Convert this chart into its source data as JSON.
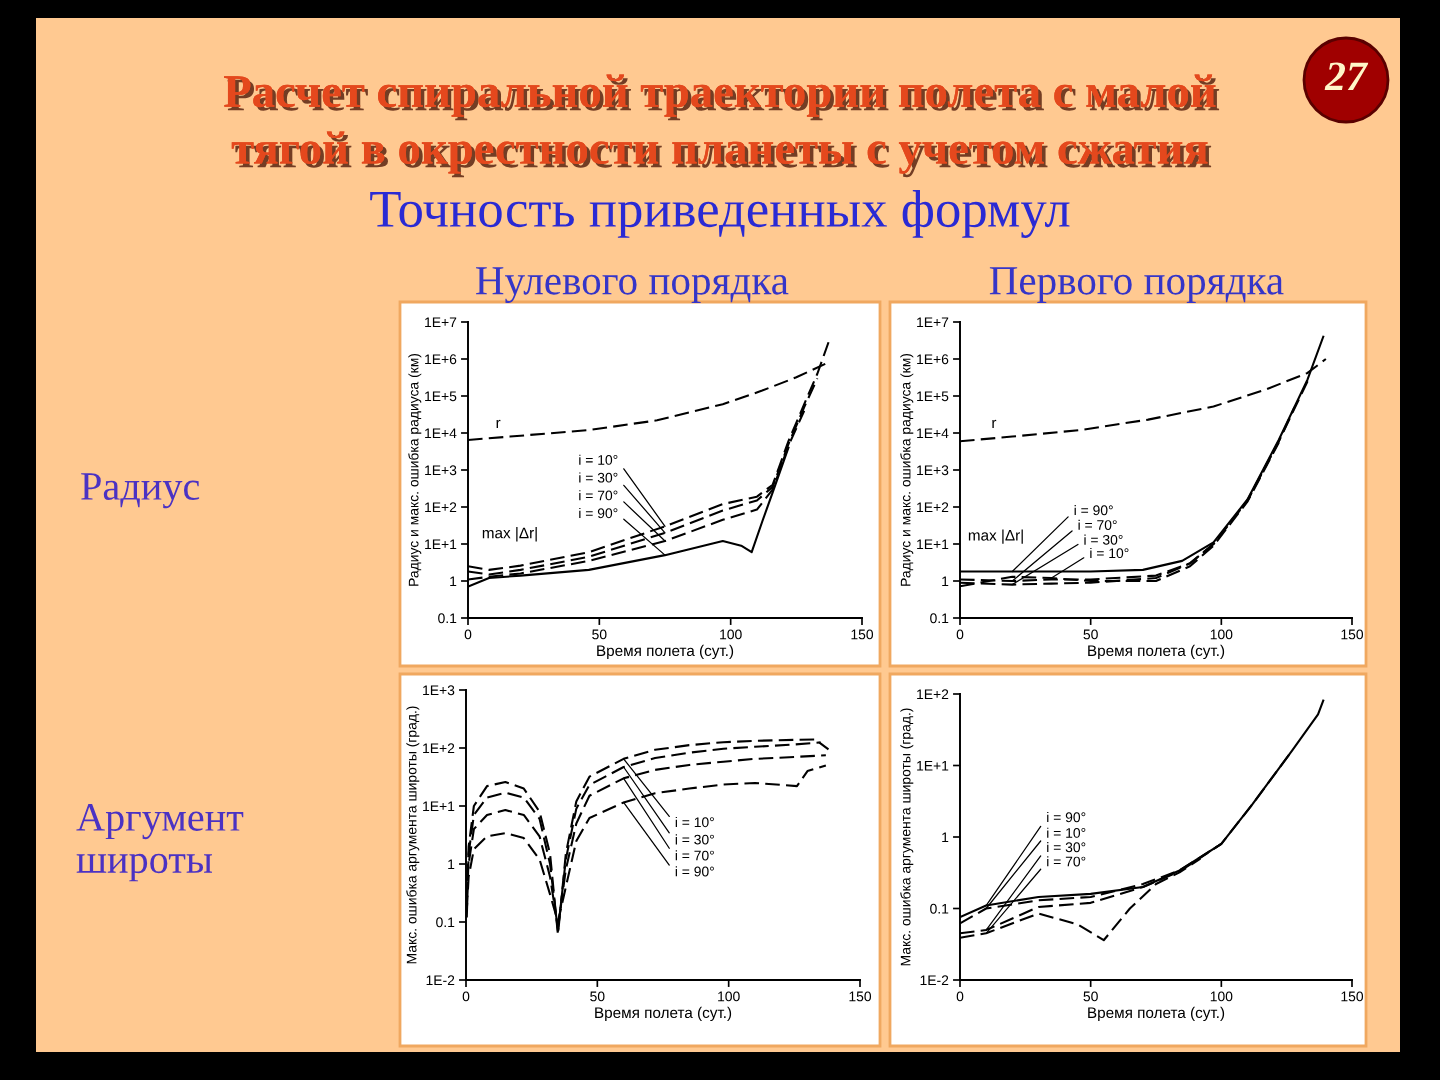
{
  "chart_data": [
    {
      "type": "line",
      "title": "Нулевого порядка",
      "xlabel": "Время полета (сут.)",
      "ylabel": "Радиус и макс. ошибка радиуса (км)",
      "log": "y",
      "xlim": [
        0,
        150
      ],
      "xticks": [
        0,
        50,
        100,
        150
      ],
      "ylim": [
        0.1,
        10000000
      ],
      "yticks": [
        0.1,
        1,
        {
          "value": 10,
          "label": "1E+1"
        },
        {
          "value": 100,
          "label": "1E+2"
        },
        {
          "value": 1000,
          "label": "1E+3"
        },
        {
          "value": 10000,
          "label": "1E+4"
        },
        {
          "value": 100000,
          "label": "1E+5"
        },
        {
          "value": 1000000,
          "label": "1E+6"
        },
        {
          "value": 10000000,
          "label": "1E+7"
        }
      ],
      "series": [
        {
          "name": "r",
          "color": "#000000",
          "line_style": "dashed",
          "x": [
            0,
            16,
            46,
            72,
            97,
            112,
            125,
            136
          ],
          "values": [
            6500,
            8000,
            12000,
            22000,
            60000,
            140000,
            320000,
            740000
          ]
        },
        {
          "color": "#000000",
          "line_style": "dashed",
          "x": [
            0,
            8,
            20,
            46,
            75,
            97,
            110,
            116,
            122,
            128,
            133,
            138
          ],
          "values": [
            2.5,
            2.0,
            2.6,
            6,
            30,
            120,
            190,
            400,
            6000,
            60000,
            400000,
            4000000
          ]
        },
        {
          "color": "#000000",
          "line_style": "dashed",
          "x": [
            0,
            8,
            20,
            46,
            75,
            97,
            110,
            116,
            122,
            128,
            133
          ],
          "values": [
            1.8,
            1.5,
            2.0,
            4.5,
            20,
            80,
            150,
            350,
            5000,
            50000,
            300000
          ]
        },
        {
          "color": "#000000",
          "line_style": "dashed",
          "x": [
            0,
            8,
            20,
            46,
            75,
            97,
            110,
            116,
            122,
            128
          ],
          "values": [
            1.1,
            1.3,
            1.6,
            3.5,
            12,
            45,
            85,
            300,
            4500,
            40000
          ]
        },
        {
          "color": "#000000",
          "line_style": "solid",
          "x": [
            0,
            8,
            20,
            46,
            75,
            97,
            104,
            108,
            112,
            116,
            122
          ],
          "values": [
            0.7,
            1.2,
            1.4,
            2.0,
            5,
            12,
            9,
            6,
            40,
            250,
            4000
          ]
        }
      ],
      "annotations": [
        "Расчет спиральной траектории полета с малой\nтягой в окрестности планеты с учетом сжатия",
        "Точность приведенных формул",
        "27",
        "Радиус",
        "max |Δr|",
        {
          "text": "i = 10°",
          "x": 75,
          "y": 30
        },
        {
          "text": "i = 30°",
          "x": 75,
          "y": 20
        },
        {
          "text": "i = 70°",
          "x": 75,
          "y": 12
        },
        {
          "text": "i = 90°",
          "x": 75,
          "y": 5
        }
      ]
    },
    {
      "type": "line",
      "title": "Первого порядка",
      "xlabel": "Время полета (сут.)",
      "ylabel": "Радиус и макс. ошибка радиуса (км)",
      "log": "y",
      "xlim": [
        0,
        150
      ],
      "xticks": [
        0,
        50,
        100,
        150
      ],
      "ylim": [
        0.1,
        10000000
      ],
      "yticks": [
        0.1,
        1,
        {
          "value": 10,
          "label": "1E+1"
        },
        {
          "value": 100,
          "label": "1E+2"
        },
        {
          "value": 1000,
          "label": "1E+3"
        },
        {
          "value": 10000,
          "label": "1E+4"
        },
        {
          "value": 100000,
          "label": "1E+5"
        },
        {
          "value": 1000000,
          "label": "1E+6"
        },
        {
          "value": 10000000,
          "label": "1E+7"
        }
      ],
      "series": [
        {
          "name": "r",
          "color": "#000000",
          "line_style": "dashed",
          "x": [
            0,
            20,
            46,
            72,
            97,
            117,
            133,
            140
          ],
          "values": [
            6000,
            8000,
            12000,
            23000,
            52000,
            150000,
            420000,
            1000000
          ]
        },
        {
          "color": "#000000",
          "line_style": "solid",
          "x": [
            0,
            20,
            50,
            70,
            85,
            97,
            110,
            122,
            133,
            139
          ],
          "values": [
            1.8,
            1.8,
            1.8,
            2.0,
            3.5,
            11,
            160,
            6600,
            280000,
            4000000
          ]
        },
        {
          "color": "#000000",
          "line_style": "dashed",
          "x": [
            0,
            20,
            35,
            50,
            75,
            88,
            97,
            110,
            122,
            133
          ],
          "values": [
            1.1,
            1.0,
            1.1,
            1.1,
            1.4,
            3.0,
            10,
            150,
            6000,
            250000
          ]
        },
        {
          "color": "#000000",
          "line_style": "dashed",
          "x": [
            0,
            20,
            35,
            50,
            75,
            88,
            97,
            110,
            122,
            128
          ],
          "values": [
            0.9,
            0.8,
            0.85,
            0.9,
            1.2,
            3.0,
            10,
            150,
            6000,
            50000
          ]
        },
        {
          "color": "#000000",
          "line_style": "dashed",
          "x": [
            0,
            20,
            35,
            50,
            75,
            88,
            97,
            110,
            122
          ],
          "values": [
            0.72,
            1.3,
            1.2,
            1.0,
            1.0,
            2.5,
            9,
            140,
            5500
          ]
        }
      ],
      "annotations": [
        "max |Δr|",
        {
          "text": "i = 90°",
          "x": 20,
          "y": 1.8
        },
        {
          "text": "i = 70°",
          "x": 20,
          "y": 1.0
        },
        {
          "text": "i = 30°",
          "x": 20,
          "y": 0.8
        },
        {
          "text": "i = 10°",
          "x": 35,
          "y": 1.2
        }
      ]
    },
    {
      "type": "line",
      "xlabel": "Время полета (сут.)",
      "ylabel": "Макс. ошибка аргумента широты (град.)",
      "log": "y",
      "xlim": [
        0,
        150
      ],
      "xticks": [
        0,
        50,
        100,
        150
      ],
      "ylim": [
        0.01,
        1000
      ],
      "yticks": [
        {
          "value": 0.01,
          "label": "1E-2"
        },
        0.1,
        1,
        {
          "value": 10,
          "label": "1E+1"
        },
        {
          "value": 100,
          "label": "1E+2"
        },
        {
          "value": 1000,
          "label": "1E+3"
        }
      ],
      "series": [
        {
          "color": "#000000",
          "line_style": "dashed",
          "x": [
            0.3,
            1,
            3,
            8,
            15,
            22,
            28,
            32,
            35,
            38,
            42,
            47,
            60,
            72,
            85,
            98,
            110,
            125,
            133,
            138
          ],
          "values": [
            0.25,
            2,
            10,
            22,
            26,
            20,
            8,
            1.5,
            0.06,
            1.5,
            12,
            32,
            65,
            93,
            112,
            126,
            133,
            138,
            140,
            95
          ]
        },
        {
          "color": "#000000",
          "line_style": "dashed",
          "x": [
            0.3,
            1,
            3,
            8,
            15,
            22,
            28,
            32,
            35,
            38,
            42,
            47,
            60,
            72,
            85,
            98,
            110,
            125,
            135
          ],
          "values": [
            0.12,
            1.5,
            7,
            14,
            17,
            14,
            6,
            1,
            0.07,
            1.2,
            9,
            23,
            47,
            67,
            83,
            97,
            105,
            115,
            125
          ]
        },
        {
          "color": "#000000",
          "line_style": "dashed",
          "x": [
            0.3,
            1,
            3,
            8,
            15,
            22,
            28,
            32,
            35,
            38,
            42,
            47,
            60,
            72,
            85,
            98,
            110,
            125,
            137
          ],
          "values": [
            0.5,
            1,
            4,
            7,
            8.5,
            7,
            3,
            0.6,
            0.08,
            0.8,
            5,
            15,
            30,
            42,
            51,
            58,
            65,
            70,
            75
          ]
        },
        {
          "color": "#000000",
          "line_style": "dashed",
          "x": [
            0.3,
            1,
            3,
            8,
            15,
            22,
            28,
            32,
            35,
            38,
            42,
            47,
            60,
            72,
            85,
            98,
            110,
            126,
            130,
            137
          ],
          "values": [
            0.16,
            0.6,
            1.8,
            3,
            3.4,
            2.8,
            1.2,
            0.3,
            0.1,
            0.4,
            2.5,
            6.2,
            11.5,
            16.6,
            20,
            23.5,
            25,
            22,
            40,
            50
          ]
        }
      ],
      "annotations": [
        "Аргумент\nшироты",
        {
          "text": "i = 10°",
          "x": 60,
          "y": 65
        },
        {
          "text": "i = 30°",
          "x": 60,
          "y": 47
        },
        {
          "text": "i = 70°",
          "x": 60,
          "y": 30
        },
        {
          "text": "i = 90°",
          "x": 60,
          "y": 11.5
        }
      ]
    },
    {
      "type": "line",
      "xlabel": "Время полета (сут.)",
      "ylabel": "Макс. ошибка аргумента широты (град.)",
      "log": "y",
      "xlim": [
        0,
        150
      ],
      "xticks": [
        0,
        50,
        100,
        150
      ],
      "ylim": [
        0.01,
        100
      ],
      "yticks": [
        {
          "value": 0.01,
          "label": "1E-2"
        },
        0.1,
        1,
        {
          "value": 10,
          "label": "1E+1"
        },
        {
          "value": 100,
          "label": "1E+2"
        }
      ],
      "series": [
        {
          "color": "#000000",
          "line_style": "solid",
          "x": [
            0,
            10,
            30,
            50,
            70,
            84,
            100,
            112,
            127,
            137,
            139
          ],
          "values": [
            0.076,
            0.11,
            0.145,
            0.16,
            0.2,
            0.34,
            0.8,
            2.9,
            16,
            52,
            81
          ]
        },
        {
          "color": "#000000",
          "line_style": "dashed",
          "x": [
            0,
            10,
            30,
            50,
            70,
            84,
            100,
            112,
            127
          ],
          "values": [
            0.062,
            0.1,
            0.13,
            0.145,
            0.22,
            0.34,
            0.8,
            2.9,
            16
          ]
        },
        {
          "color": "#000000",
          "line_style": "dashed",
          "x": [
            0,
            10,
            30,
            50,
            70,
            84,
            100
          ],
          "values": [
            0.045,
            0.05,
            0.105,
            0.12,
            0.2,
            0.33,
            0.8
          ]
        },
        {
          "color": "#000000",
          "line_style": "dashed",
          "x": [
            0,
            10,
            30,
            45,
            55,
            65,
            75,
            84,
            92
          ],
          "values": [
            0.039,
            0.045,
            0.085,
            0.06,
            0.036,
            0.1,
            0.22,
            0.32,
            0.5
          ]
        }
      ],
      "annotations": [
        {
          "text": "i = 90°",
          "x": 10,
          "y": 0.11
        },
        {
          "text": "i = 10°",
          "x": 10,
          "y": 0.1
        },
        {
          "text": "i = 30°",
          "x": 10,
          "y": 0.05
        },
        {
          "text": "i = 70°",
          "x": 10,
          "y": 0.045
        }
      ]
    }
  ]
}
